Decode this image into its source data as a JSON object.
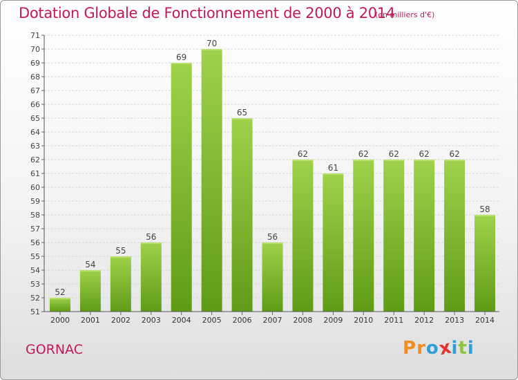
{
  "header": {
    "title": "Dotation Globale de Fonctionnement de 2000 à 2014",
    "unit": "(en milliers d'€)"
  },
  "footer": {
    "commune": "GORNAC",
    "brand": "Proxiti"
  },
  "colors": {
    "title": "#c2185b",
    "bar_light": "#9fd14a",
    "bar_dark": "#5f9c16",
    "brand_letters": [
      "#f28c1c",
      "#f28c1c",
      "#2f9fd8",
      "#e6322c",
      "#2f9fd8",
      "#8cc63f",
      "#2f9fd8"
    ]
  },
  "chart_data": {
    "type": "bar",
    "categories": [
      "2000",
      "2001",
      "2002",
      "2003",
      "2004",
      "2005",
      "2006",
      "2007",
      "2008",
      "2009",
      "2010",
      "2011",
      "2012",
      "2013",
      "2014"
    ],
    "values": [
      52,
      54,
      55,
      56,
      69,
      70,
      65,
      56,
      62,
      61,
      62,
      62,
      62,
      62,
      58
    ],
    "title": "Dotation Globale de Fonctionnement de 2000 à 2014",
    "unit": "(en milliers d'€)",
    "xlabel": "",
    "ylabel": "",
    "ylim": [
      51,
      71
    ],
    "yticks": [
      51,
      52,
      53,
      54,
      55,
      56,
      57,
      58,
      59,
      60,
      61,
      62,
      63,
      64,
      65,
      66,
      67,
      68,
      69,
      70,
      71
    ],
    "grid": true,
    "legend": "none"
  }
}
